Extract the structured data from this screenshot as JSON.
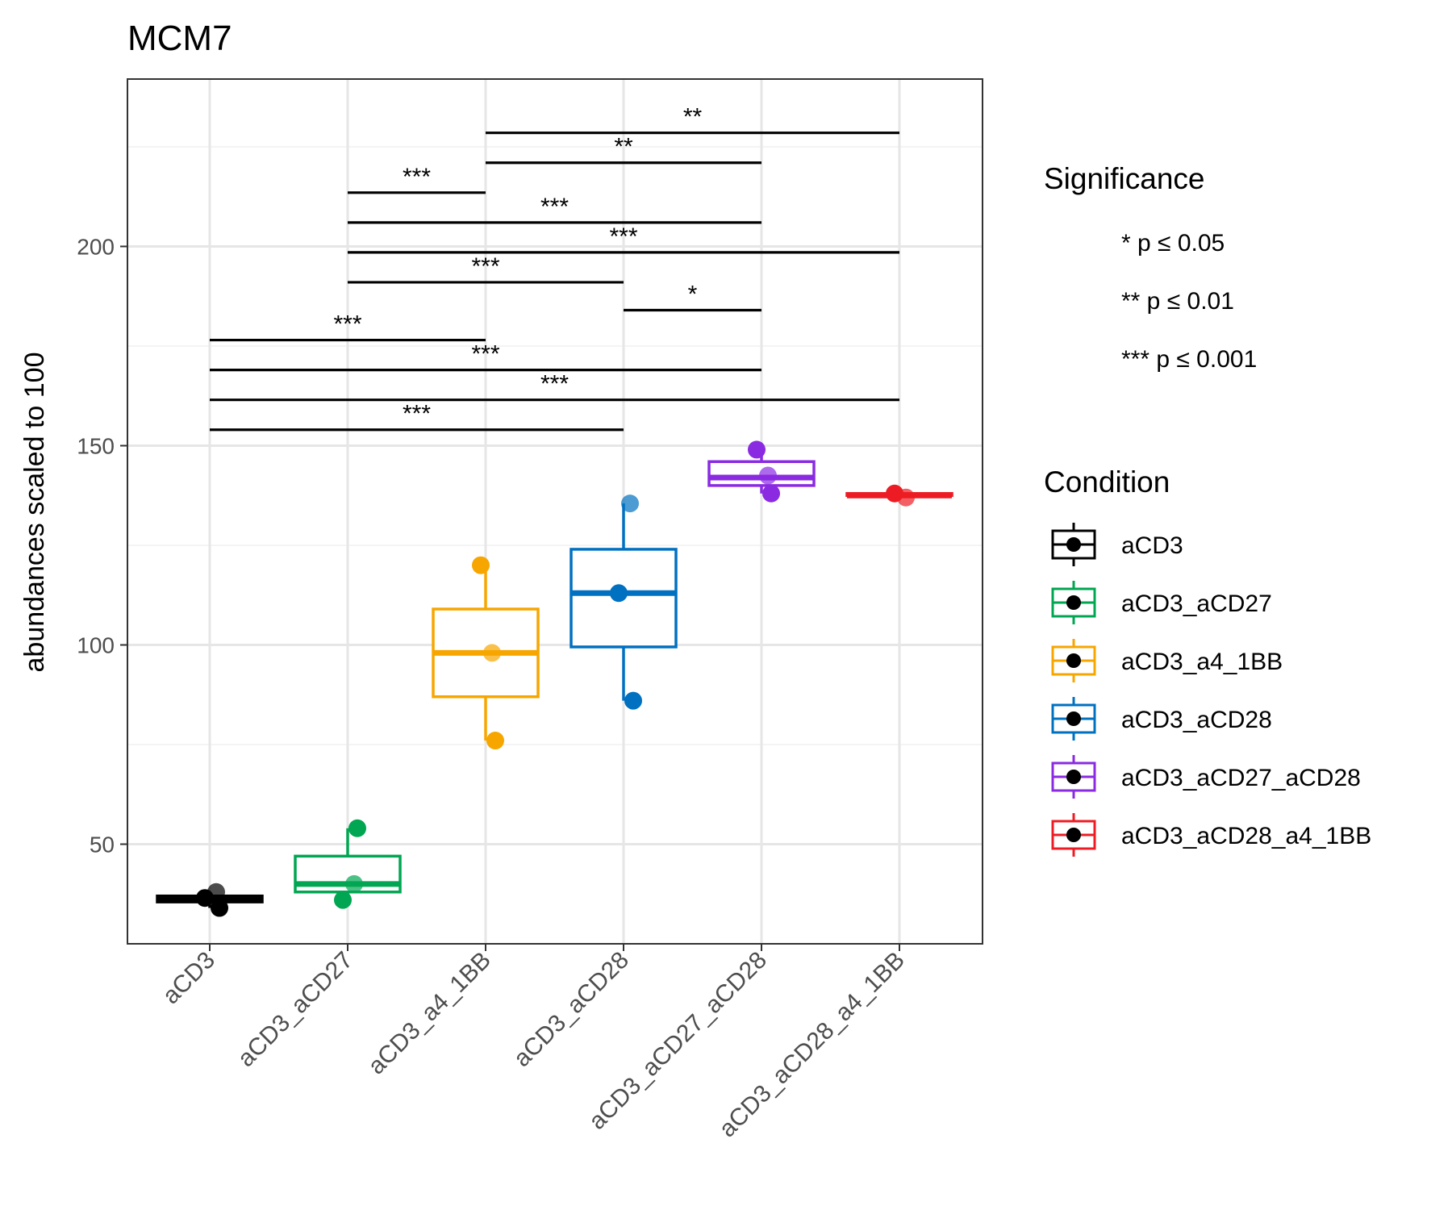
{
  "chart_data": {
    "type": "box",
    "title": "MCM7",
    "ylabel": "abundances scaled to 100",
    "xlabel": "",
    "ylim": [
      25,
      242
    ],
    "yticks": [
      50,
      100,
      150,
      200
    ],
    "grid": true,
    "categories": [
      "aCD3",
      "aCD3_aCD27",
      "aCD3_a4_1BB",
      "aCD3_aCD28",
      "aCD3_aCD27_aCD28",
      "aCD3_aCD28_a4_1BB"
    ],
    "boxes": [
      {
        "condition": "aCD3",
        "color": "#000000",
        "min": 34,
        "q1": 35.5,
        "median": 36,
        "q3": 37,
        "max": 38,
        "points": [
          36.5,
          38,
          34
        ]
      },
      {
        "condition": "aCD3_aCD27",
        "color": "#00A651",
        "min": 36,
        "q1": 38,
        "median": 40,
        "q3": 47,
        "max": 54,
        "points": [
          36,
          40,
          54
        ]
      },
      {
        "condition": "aCD3_a4_1BB",
        "color": "#F7A600",
        "min": 76,
        "q1": 87,
        "median": 98,
        "q3": 109,
        "max": 120,
        "points": [
          120,
          98,
          76
        ]
      },
      {
        "condition": "aCD3_aCD28",
        "color": "#0070C0",
        "min": 86,
        "q1": 99.5,
        "median": 113,
        "q3": 124,
        "max": 135.5,
        "points": [
          113,
          135.5,
          86
        ]
      },
      {
        "condition": "aCD3_aCD27_aCD28",
        "color": "#8A2BE2",
        "min": 138,
        "q1": 140,
        "median": 142,
        "q3": 146,
        "max": 149,
        "points": [
          149,
          142.5,
          138
        ]
      },
      {
        "condition": "aCD3_aCD28_a4_1BB",
        "color": "#ED1C24",
        "min": 137,
        "q1": 137.5,
        "median": 137.5,
        "q3": 138,
        "max": 138,
        "points": [
          138,
          137
        ]
      }
    ],
    "significance_bars": [
      {
        "from": 0,
        "to": 3,
        "y": 154,
        "label": "***"
      },
      {
        "from": 0,
        "to": 5,
        "y": 161.5,
        "label": "***"
      },
      {
        "from": 0,
        "to": 4,
        "y": 169,
        "label": "***"
      },
      {
        "from": 0,
        "to": 2,
        "y": 176.5,
        "label": "***"
      },
      {
        "from": 3,
        "to": 4,
        "y": 184,
        "label": "*"
      },
      {
        "from": 1,
        "to": 3,
        "y": 191,
        "label": "***"
      },
      {
        "from": 1,
        "to": 5,
        "y": 198.5,
        "label": "***"
      },
      {
        "from": 1,
        "to": 4,
        "y": 206,
        "label": "***"
      },
      {
        "from": 1,
        "to": 2,
        "y": 213.5,
        "label": "***"
      },
      {
        "from": 2,
        "to": 4,
        "y": 221,
        "label": "**"
      },
      {
        "from": 2,
        "to": 5,
        "y": 228.5,
        "label": "**"
      }
    ],
    "legend": {
      "placement": "right",
      "significance_title": "Significance",
      "significance_items": [
        "* p ≤ 0.05",
        "** p ≤ 0.01",
        "*** p ≤ 0.001"
      ],
      "condition_title": "Condition",
      "condition_items": [
        {
          "label": "aCD3",
          "color": "#000000"
        },
        {
          "label": "aCD3_aCD27",
          "color": "#00A651"
        },
        {
          "label": "aCD3_a4_1BB",
          "color": "#F7A600"
        },
        {
          "label": "aCD3_aCD28",
          "color": "#0070C0"
        },
        {
          "label": "aCD3_aCD27_aCD28",
          "color": "#8A2BE2"
        },
        {
          "label": "aCD3_aCD28_a4_1BB",
          "color": "#ED1C24"
        }
      ]
    }
  }
}
